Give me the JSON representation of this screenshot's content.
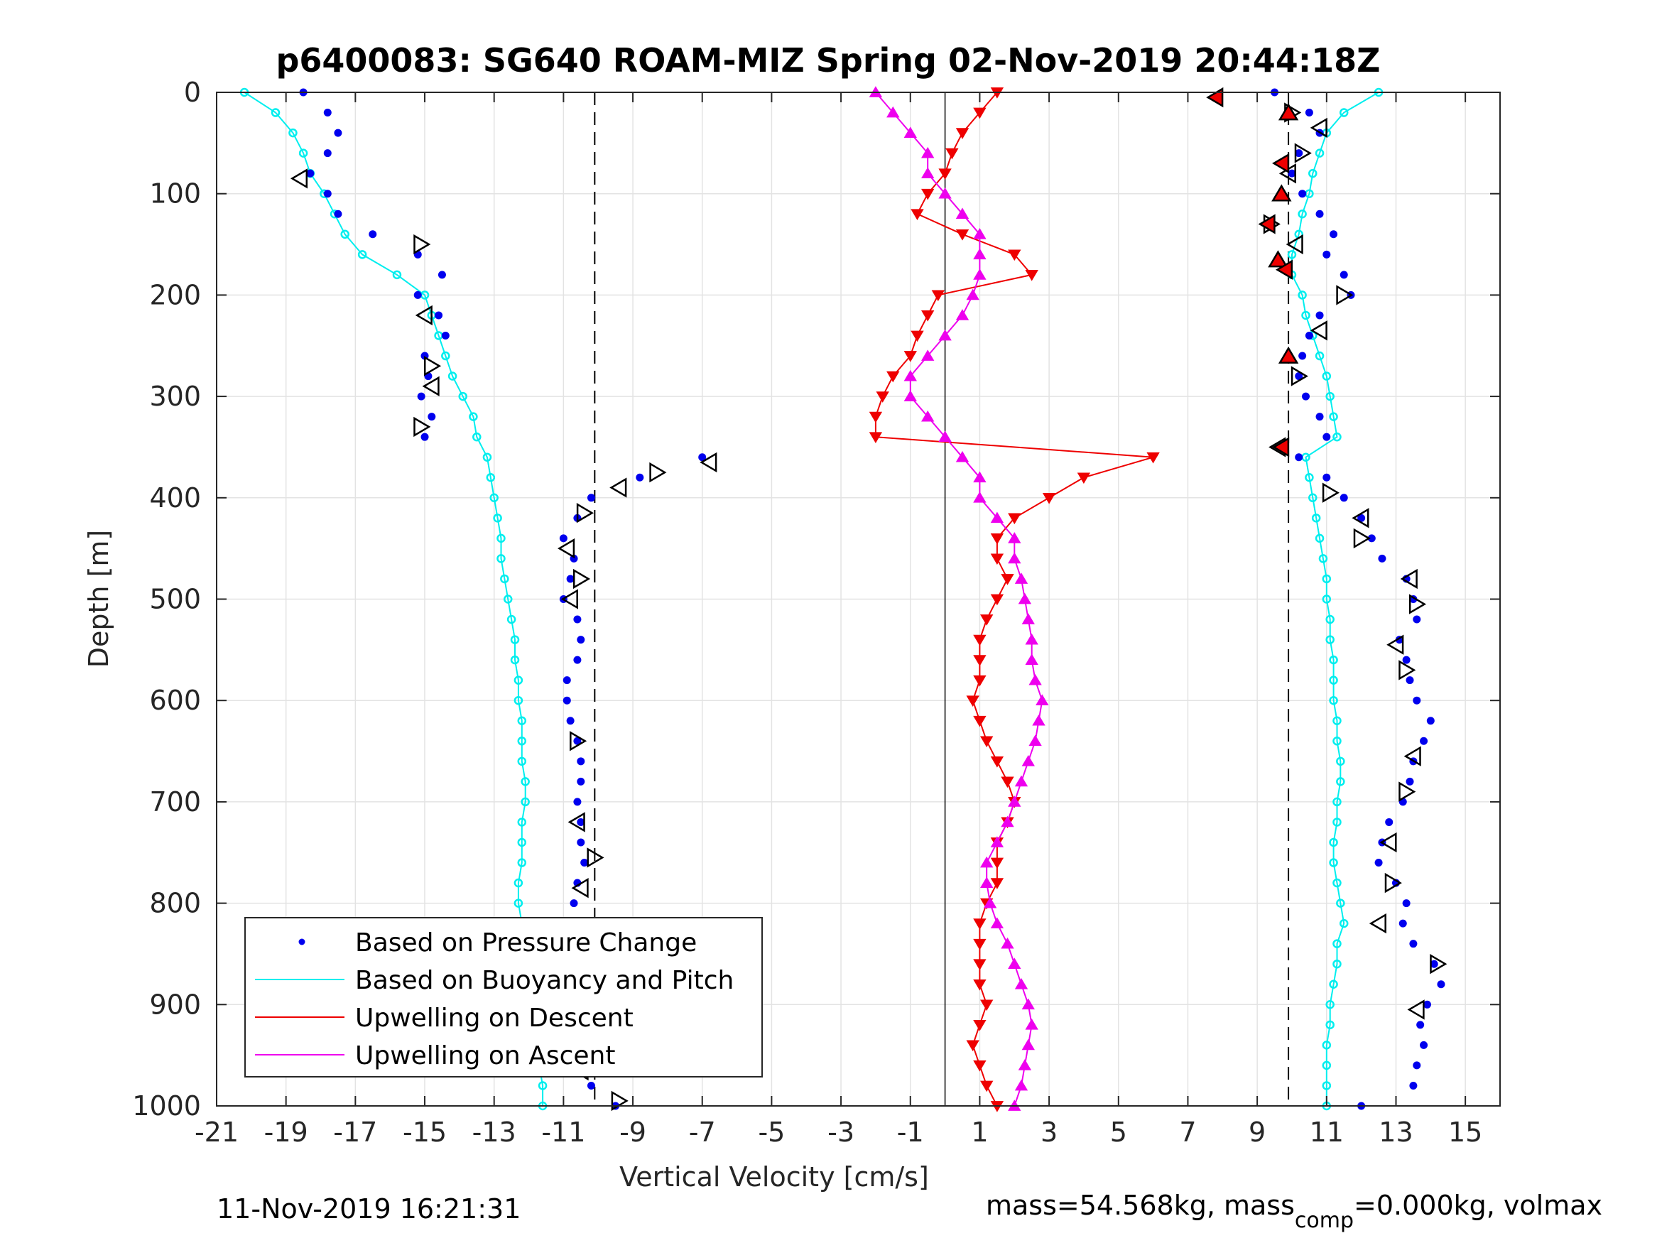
{
  "chart_data": {
    "type": "scatter",
    "title": "p6400083: SG640 ROAM-MIZ Spring 02-Nov-2019 20:44:18Z",
    "xlabel": "Vertical Velocity [cm/s]",
    "ylabel": "Depth [m]",
    "xlim": [
      -21,
      16
    ],
    "ylim": [
      1000,
      0
    ],
    "y_reversed": true,
    "grid": true,
    "legend_position": "bottom-left",
    "x_ticks": [
      -21,
      -19,
      -17,
      -15,
      -13,
      -11,
      -9,
      -7,
      -5,
      -3,
      -1,
      1,
      3,
      5,
      7,
      9,
      11,
      13,
      15
    ],
    "y_ticks": [
      0,
      100,
      200,
      300,
      400,
      500,
      600,
      700,
      800,
      900,
      1000
    ],
    "reference_lines": {
      "dashed_x": [
        -10.1,
        9.9
      ],
      "solid_x": [
        0
      ]
    },
    "series": [
      {
        "name": "Based on Pressure Change",
        "color": "#0000ee",
        "marker": "dot",
        "descent_depth": [
          0,
          20,
          40,
          60,
          80,
          100,
          120,
          140,
          160,
          180,
          200,
          220,
          240,
          260,
          280,
          300,
          320,
          340,
          360,
          380,
          400,
          420,
          440,
          460,
          480,
          500,
          520,
          540,
          560,
          580,
          600,
          620,
          640,
          660,
          680,
          700,
          720,
          740,
          760,
          780,
          800,
          820,
          840,
          860,
          880,
          900,
          920,
          940,
          960,
          980,
          1000
        ],
        "descent_values": [
          -18.5,
          -17.8,
          -17.5,
          -17.8,
          -18.3,
          -17.8,
          -17.5,
          -16.5,
          -15.2,
          -14.5,
          -15.2,
          -14.6,
          -14.4,
          -15.0,
          -14.9,
          -15.1,
          -14.8,
          -15.0,
          -7.0,
          -8.8,
          -10.2,
          -10.6,
          -11.0,
          -10.7,
          -10.8,
          -11.0,
          -10.6,
          -10.5,
          -10.6,
          -10.9,
          -10.9,
          -10.8,
          -10.6,
          -10.5,
          -10.5,
          -10.6,
          -10.5,
          -10.5,
          -10.4,
          -10.6,
          -10.7,
          -10.8,
          -10.7,
          -10.8,
          -10.9,
          -10.8,
          -10.6,
          -10.6,
          -10.7,
          -10.2,
          -9.5
        ],
        "ascent_depth": [
          0,
          20,
          40,
          60,
          80,
          100,
          120,
          140,
          160,
          180,
          200,
          220,
          240,
          260,
          280,
          300,
          320,
          340,
          360,
          380,
          400,
          420,
          440,
          460,
          480,
          500,
          520,
          540,
          560,
          580,
          600,
          620,
          640,
          660,
          680,
          700,
          720,
          740,
          760,
          780,
          800,
          820,
          840,
          860,
          880,
          900,
          920,
          940,
          960,
          980,
          1000
        ],
        "ascent_values": [
          9.5,
          10.5,
          10.8,
          10.2,
          10.0,
          10.3,
          10.8,
          11.2,
          11.0,
          11.5,
          11.7,
          10.8,
          10.5,
          10.3,
          10.2,
          10.4,
          10.8,
          11.0,
          10.2,
          11.0,
          11.5,
          12.0,
          12.3,
          12.6,
          13.3,
          13.5,
          13.6,
          13.1,
          13.3,
          13.4,
          13.6,
          14.0,
          13.8,
          13.5,
          13.4,
          13.2,
          12.8,
          12.6,
          12.5,
          13.0,
          13.3,
          13.2,
          13.5,
          14.1,
          14.3,
          13.9,
          13.7,
          13.8,
          13.6,
          13.5,
          12.0
        ]
      },
      {
        "name": "Based on Buoyancy and Pitch",
        "color": "#00eeee",
        "marker": "circle-line",
        "descent_depth": [
          0,
          20,
          40,
          60,
          80,
          100,
          120,
          140,
          160,
          180,
          200,
          220,
          240,
          260,
          280,
          300,
          320,
          340,
          360,
          380,
          400,
          420,
          440,
          460,
          480,
          500,
          520,
          540,
          560,
          580,
          600,
          620,
          640,
          660,
          680,
          700,
          720,
          740,
          760,
          780,
          800,
          820,
          840,
          860,
          880,
          900,
          920,
          940,
          960,
          980,
          1000
        ],
        "descent_values": [
          -20.2,
          -19.3,
          -18.8,
          -18.5,
          -18.3,
          -17.9,
          -17.6,
          -17.3,
          -16.8,
          -15.8,
          -15.0,
          -14.8,
          -14.6,
          -14.4,
          -14.2,
          -13.9,
          -13.6,
          -13.5,
          -13.2,
          -13.1,
          -13.0,
          -12.9,
          -12.8,
          -12.8,
          -12.7,
          -12.6,
          -12.5,
          -12.4,
          -12.4,
          -12.3,
          -12.3,
          -12.2,
          -12.2,
          -12.2,
          -12.1,
          -12.1,
          -12.2,
          -12.2,
          -12.2,
          -12.3,
          -12.3,
          -12.2,
          -12.0,
          -12.0,
          -11.9,
          -11.8,
          -11.8,
          -11.8,
          -11.7,
          -11.6,
          -11.6
        ],
        "ascent_depth": [
          0,
          20,
          40,
          60,
          80,
          100,
          120,
          140,
          160,
          180,
          200,
          220,
          240,
          260,
          280,
          300,
          320,
          340,
          360,
          380,
          400,
          420,
          440,
          460,
          480,
          500,
          520,
          540,
          560,
          580,
          600,
          620,
          640,
          660,
          680,
          700,
          720,
          740,
          760,
          780,
          800,
          820,
          840,
          860,
          880,
          900,
          920,
          940,
          960,
          980,
          1000
        ],
        "ascent_values": [
          12.5,
          11.5,
          11.0,
          10.8,
          10.6,
          10.5,
          10.3,
          10.2,
          10.0,
          10.0,
          10.3,
          10.4,
          10.6,
          10.8,
          11.0,
          11.1,
          11.2,
          11.3,
          10.4,
          10.5,
          10.6,
          10.7,
          10.8,
          10.9,
          11.0,
          11.0,
          11.1,
          11.1,
          11.2,
          11.2,
          11.2,
          11.3,
          11.3,
          11.4,
          11.4,
          11.3,
          11.3,
          11.2,
          11.2,
          11.3,
          11.4,
          11.5,
          11.3,
          11.3,
          11.2,
          11.1,
          11.1,
          11.0,
          11.0,
          11.0,
          11.0
        ]
      },
      {
        "name": "Upwelling on Descent",
        "color": "#ee0000",
        "marker": "triangle-down-line",
        "depth": [
          0,
          20,
          40,
          60,
          80,
          100,
          120,
          140,
          160,
          180,
          200,
          220,
          240,
          260,
          280,
          300,
          320,
          340,
          360,
          380,
          400,
          420,
          440,
          460,
          480,
          500,
          520,
          540,
          560,
          580,
          600,
          620,
          640,
          660,
          680,
          700,
          720,
          740,
          760,
          780,
          800,
          820,
          840,
          860,
          880,
          900,
          920,
          940,
          960,
          980,
          1000
        ],
        "values": [
          1.5,
          1.0,
          0.5,
          0.2,
          0.0,
          -0.5,
          -0.8,
          0.5,
          2.0,
          2.5,
          -0.2,
          -0.5,
          -0.8,
          -1.0,
          -1.5,
          -1.8,
          -2.0,
          -2.0,
          6.0,
          4.0,
          3.0,
          2.0,
          1.5,
          1.5,
          1.8,
          1.5,
          1.2,
          1.0,
          1.0,
          1.0,
          0.8,
          1.0,
          1.2,
          1.5,
          1.8,
          2.0,
          1.8,
          1.5,
          1.5,
          1.5,
          1.2,
          1.0,
          1.0,
          1.0,
          1.0,
          1.2,
          1.0,
          0.8,
          1.0,
          1.2,
          1.5
        ]
      },
      {
        "name": "Upwelling on Ascent",
        "color": "#ee00ee",
        "marker": "triangle-up-line",
        "depth": [
          0,
          20,
          40,
          60,
          80,
          100,
          120,
          140,
          160,
          180,
          200,
          220,
          240,
          260,
          280,
          300,
          320,
          340,
          360,
          380,
          400,
          420,
          440,
          460,
          480,
          500,
          520,
          540,
          560,
          580,
          600,
          620,
          640,
          660,
          680,
          700,
          720,
          740,
          760,
          780,
          800,
          820,
          840,
          860,
          880,
          900,
          920,
          940,
          960,
          980,
          1000
        ],
        "values": [
          -2.0,
          -1.5,
          -1.0,
          -0.5,
          -0.5,
          0.0,
          0.5,
          1.0,
          1.0,
          1.0,
          0.8,
          0.5,
          0.0,
          -0.5,
          -1.0,
          -1.0,
          -0.5,
          0.0,
          0.5,
          1.0,
          1.0,
          1.5,
          2.0,
          2.0,
          2.2,
          2.3,
          2.4,
          2.5,
          2.5,
          2.6,
          2.8,
          2.7,
          2.6,
          2.4,
          2.2,
          2.0,
          1.8,
          1.5,
          1.2,
          1.2,
          1.3,
          1.5,
          1.8,
          2.0,
          2.2,
          2.4,
          2.5,
          2.4,
          2.3,
          2.2,
          2.0
        ]
      }
    ],
    "turning_markers": {
      "left_triangles_depth": [
        85,
        150,
        220,
        270,
        290,
        330,
        365,
        375,
        390,
        415,
        450,
        480,
        500,
        640,
        720,
        755,
        785,
        845,
        965,
        995
      ],
      "left_triangles_values": [
        -18.6,
        -15.1,
        -15.0,
        -14.8,
        -14.8,
        -15.1,
        -6.8,
        -8.3,
        -9.4,
        -10.4,
        -10.9,
        -10.5,
        -10.8,
        -10.6,
        -10.6,
        -10.1,
        -10.5,
        -10.6,
        -10.5,
        -9.4
      ],
      "right_triangles_depth": [
        20,
        35,
        60,
        80,
        130,
        150,
        200,
        235,
        280,
        350,
        395,
        420,
        440,
        480,
        505,
        545,
        570,
        655,
        690,
        740,
        780,
        820,
        860,
        905
      ],
      "right_triangles_values": [
        10.0,
        10.8,
        10.3,
        9.9,
        9.4,
        10.1,
        11.5,
        10.8,
        10.2,
        9.6,
        11.1,
        12.0,
        12.0,
        13.4,
        13.6,
        13.0,
        13.3,
        13.5,
        13.3,
        12.8,
        12.9,
        12.5,
        14.2,
        13.6
      ],
      "red_triangles_depth": [
        5,
        20,
        70,
        100,
        130,
        165,
        175,
        260,
        350
      ],
      "red_triangles_values": [
        7.8,
        9.9,
        9.7,
        9.7,
        9.3,
        9.6,
        9.8,
        9.9,
        9.7
      ]
    }
  },
  "footer": {
    "timestamp": "11-Nov-2019 16:21:31",
    "mass_text_part1": "mass=54.568kg, mass",
    "mass_subscript": "comp",
    "mass_text_part2": "=0.000kg, volmax"
  }
}
